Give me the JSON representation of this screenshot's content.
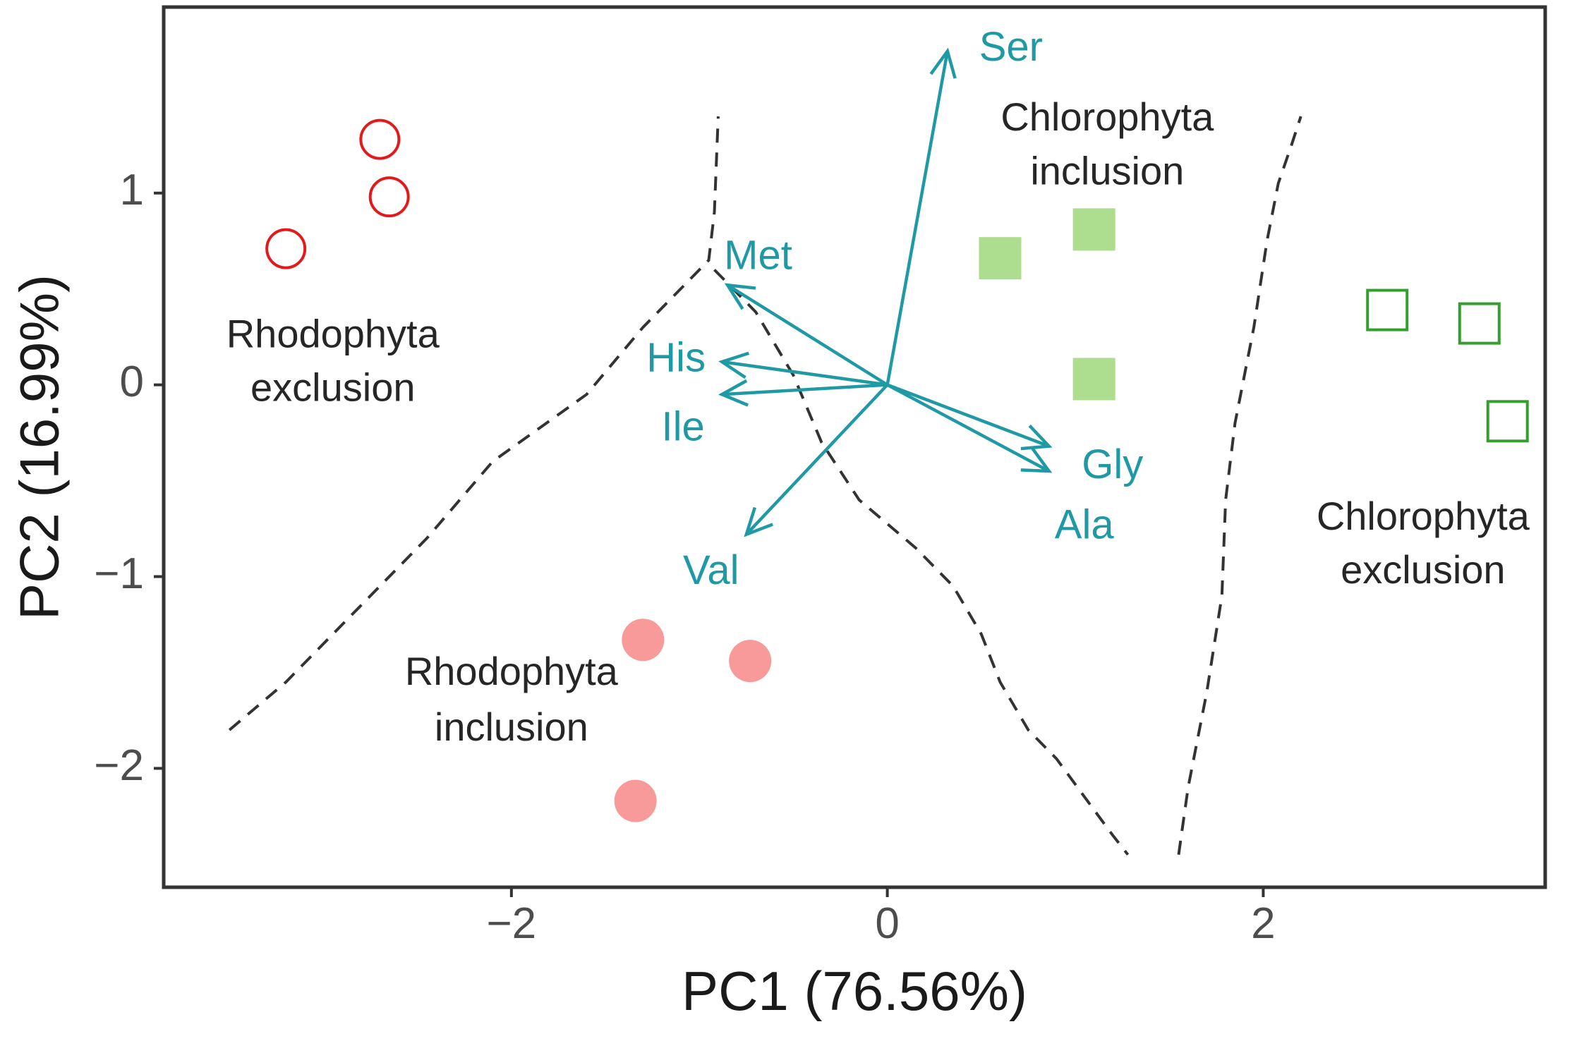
{
  "chart_data": {
    "type": "scatter",
    "subtype": "pca-biplot",
    "title": "",
    "xlabel": "PC1 (76.56%)",
    "ylabel": "PC2 (16.99%)",
    "xlim": [
      -3.85,
      3.5
    ],
    "ylim": [
      -2.62,
      1.97
    ],
    "xticks": [
      -2,
      0,
      2
    ],
    "yticks": [
      -2,
      -1,
      0,
      1
    ],
    "xtick_labels": [
      "−2",
      "0",
      "2"
    ],
    "ytick_labels": [
      "−2",
      "−1",
      "0",
      "1"
    ],
    "grid": false,
    "colors": {
      "rhodophyta_exclusion": "#e31a1c",
      "rhodophyta_inclusion": "#f8999a",
      "chlorophyta_inclusion": "#addd8e",
      "chlorophyta_exclusion": "#33a02c",
      "loadings": "#1f9aa5",
      "boundary": "#333333"
    },
    "series": [
      {
        "name": "Rhodophyta exclusion",
        "marker": "open-circle",
        "color": "#e31a1c",
        "points": [
          [
            -3.2,
            0.71
          ],
          [
            -2.7,
            1.28
          ],
          [
            -2.65,
            0.98
          ]
        ]
      },
      {
        "name": "Rhodophyta inclusion",
        "marker": "filled-circle",
        "color": "#f8999a",
        "points": [
          [
            -1.3,
            -1.33
          ],
          [
            -0.73,
            -1.44
          ],
          [
            -1.34,
            -2.17
          ]
        ]
      },
      {
        "name": "Chlorophyta inclusion",
        "marker": "filled-square",
        "color": "#addd8e",
        "points": [
          [
            0.6,
            0.66
          ],
          [
            1.1,
            0.81
          ],
          [
            1.1,
            0.03
          ]
        ]
      },
      {
        "name": "Chlorophyta exclusion",
        "marker": "open-square",
        "color": "#33a02c",
        "points": [
          [
            2.66,
            0.39
          ],
          [
            3.15,
            0.32
          ],
          [
            3.3,
            -0.19
          ]
        ]
      }
    ],
    "loadings": [
      {
        "label": "Ser",
        "x": 0.32,
        "y": 1.74
      },
      {
        "label": "Met",
        "x": -0.85,
        "y": 0.52
      },
      {
        "label": "His",
        "x": -0.88,
        "y": 0.12
      },
      {
        "label": "Ile",
        "x": -0.88,
        "y": -0.05
      },
      {
        "label": "Gly",
        "x": 0.86,
        "y": -0.32
      },
      {
        "label": "Ala",
        "x": 0.86,
        "y": -0.45
      },
      {
        "label": "Val",
        "x": -0.75,
        "y": -0.78
      }
    ],
    "boundaries": [
      {
        "name": "left",
        "points": [
          [
            -3.5,
            -1.8
          ],
          [
            -3.2,
            -1.55
          ],
          [
            -2.85,
            -1.2
          ],
          [
            -2.45,
            -0.8
          ],
          [
            -2.1,
            -0.4
          ],
          [
            -1.6,
            -0.05
          ],
          [
            -1.3,
            0.3
          ],
          [
            -0.95,
            0.65
          ],
          [
            -0.92,
            0.9
          ],
          [
            -0.9,
            1.4
          ]
        ]
      },
      {
        "name": "middle",
        "points": [
          [
            -0.92,
            0.6
          ],
          [
            -0.7,
            0.38
          ],
          [
            -0.5,
            0.05
          ],
          [
            -0.35,
            -0.3
          ],
          [
            -0.15,
            -0.6
          ],
          [
            0.15,
            -0.85
          ],
          [
            0.35,
            -1.05
          ],
          [
            0.5,
            -1.3
          ],
          [
            0.6,
            -1.55
          ],
          [
            0.75,
            -1.8
          ],
          [
            0.9,
            -1.95
          ],
          [
            1.05,
            -2.15
          ],
          [
            1.2,
            -2.35
          ],
          [
            1.28,
            -2.45
          ]
        ]
      },
      {
        "name": "right",
        "points": [
          [
            1.55,
            -2.45
          ],
          [
            1.6,
            -2.1
          ],
          [
            1.7,
            -1.6
          ],
          [
            1.78,
            -1.1
          ],
          [
            1.8,
            -0.6
          ],
          [
            1.85,
            -0.2
          ],
          [
            1.95,
            0.3
          ],
          [
            2.02,
            0.75
          ],
          [
            2.08,
            1.05
          ],
          [
            2.15,
            1.25
          ],
          [
            2.2,
            1.4
          ]
        ]
      }
    ],
    "annotations": [
      {
        "text": "Rhodophyta",
        "x": -2.95,
        "y": 0.25,
        "anchor": "middle"
      },
      {
        "text": "exclusion",
        "x": -2.95,
        "y": -0.03,
        "anchor": "middle"
      },
      {
        "text": "Rhodophyta",
        "x": -2.0,
        "y": -1.51,
        "anchor": "middle"
      },
      {
        "text": "inclusion",
        "x": -2.0,
        "y": -1.8,
        "anchor": "middle"
      },
      {
        "text": "Chlorophyta",
        "x": 1.17,
        "y": 1.38,
        "anchor": "middle"
      },
      {
        "text": "inclusion",
        "x": 1.17,
        "y": 1.1,
        "anchor": "middle"
      },
      {
        "text": "Chlorophyta",
        "x": 2.85,
        "y": -0.7,
        "anchor": "middle"
      },
      {
        "text": "exclusion",
        "x": 2.85,
        "y": -0.98,
        "anchor": "middle"
      }
    ]
  }
}
